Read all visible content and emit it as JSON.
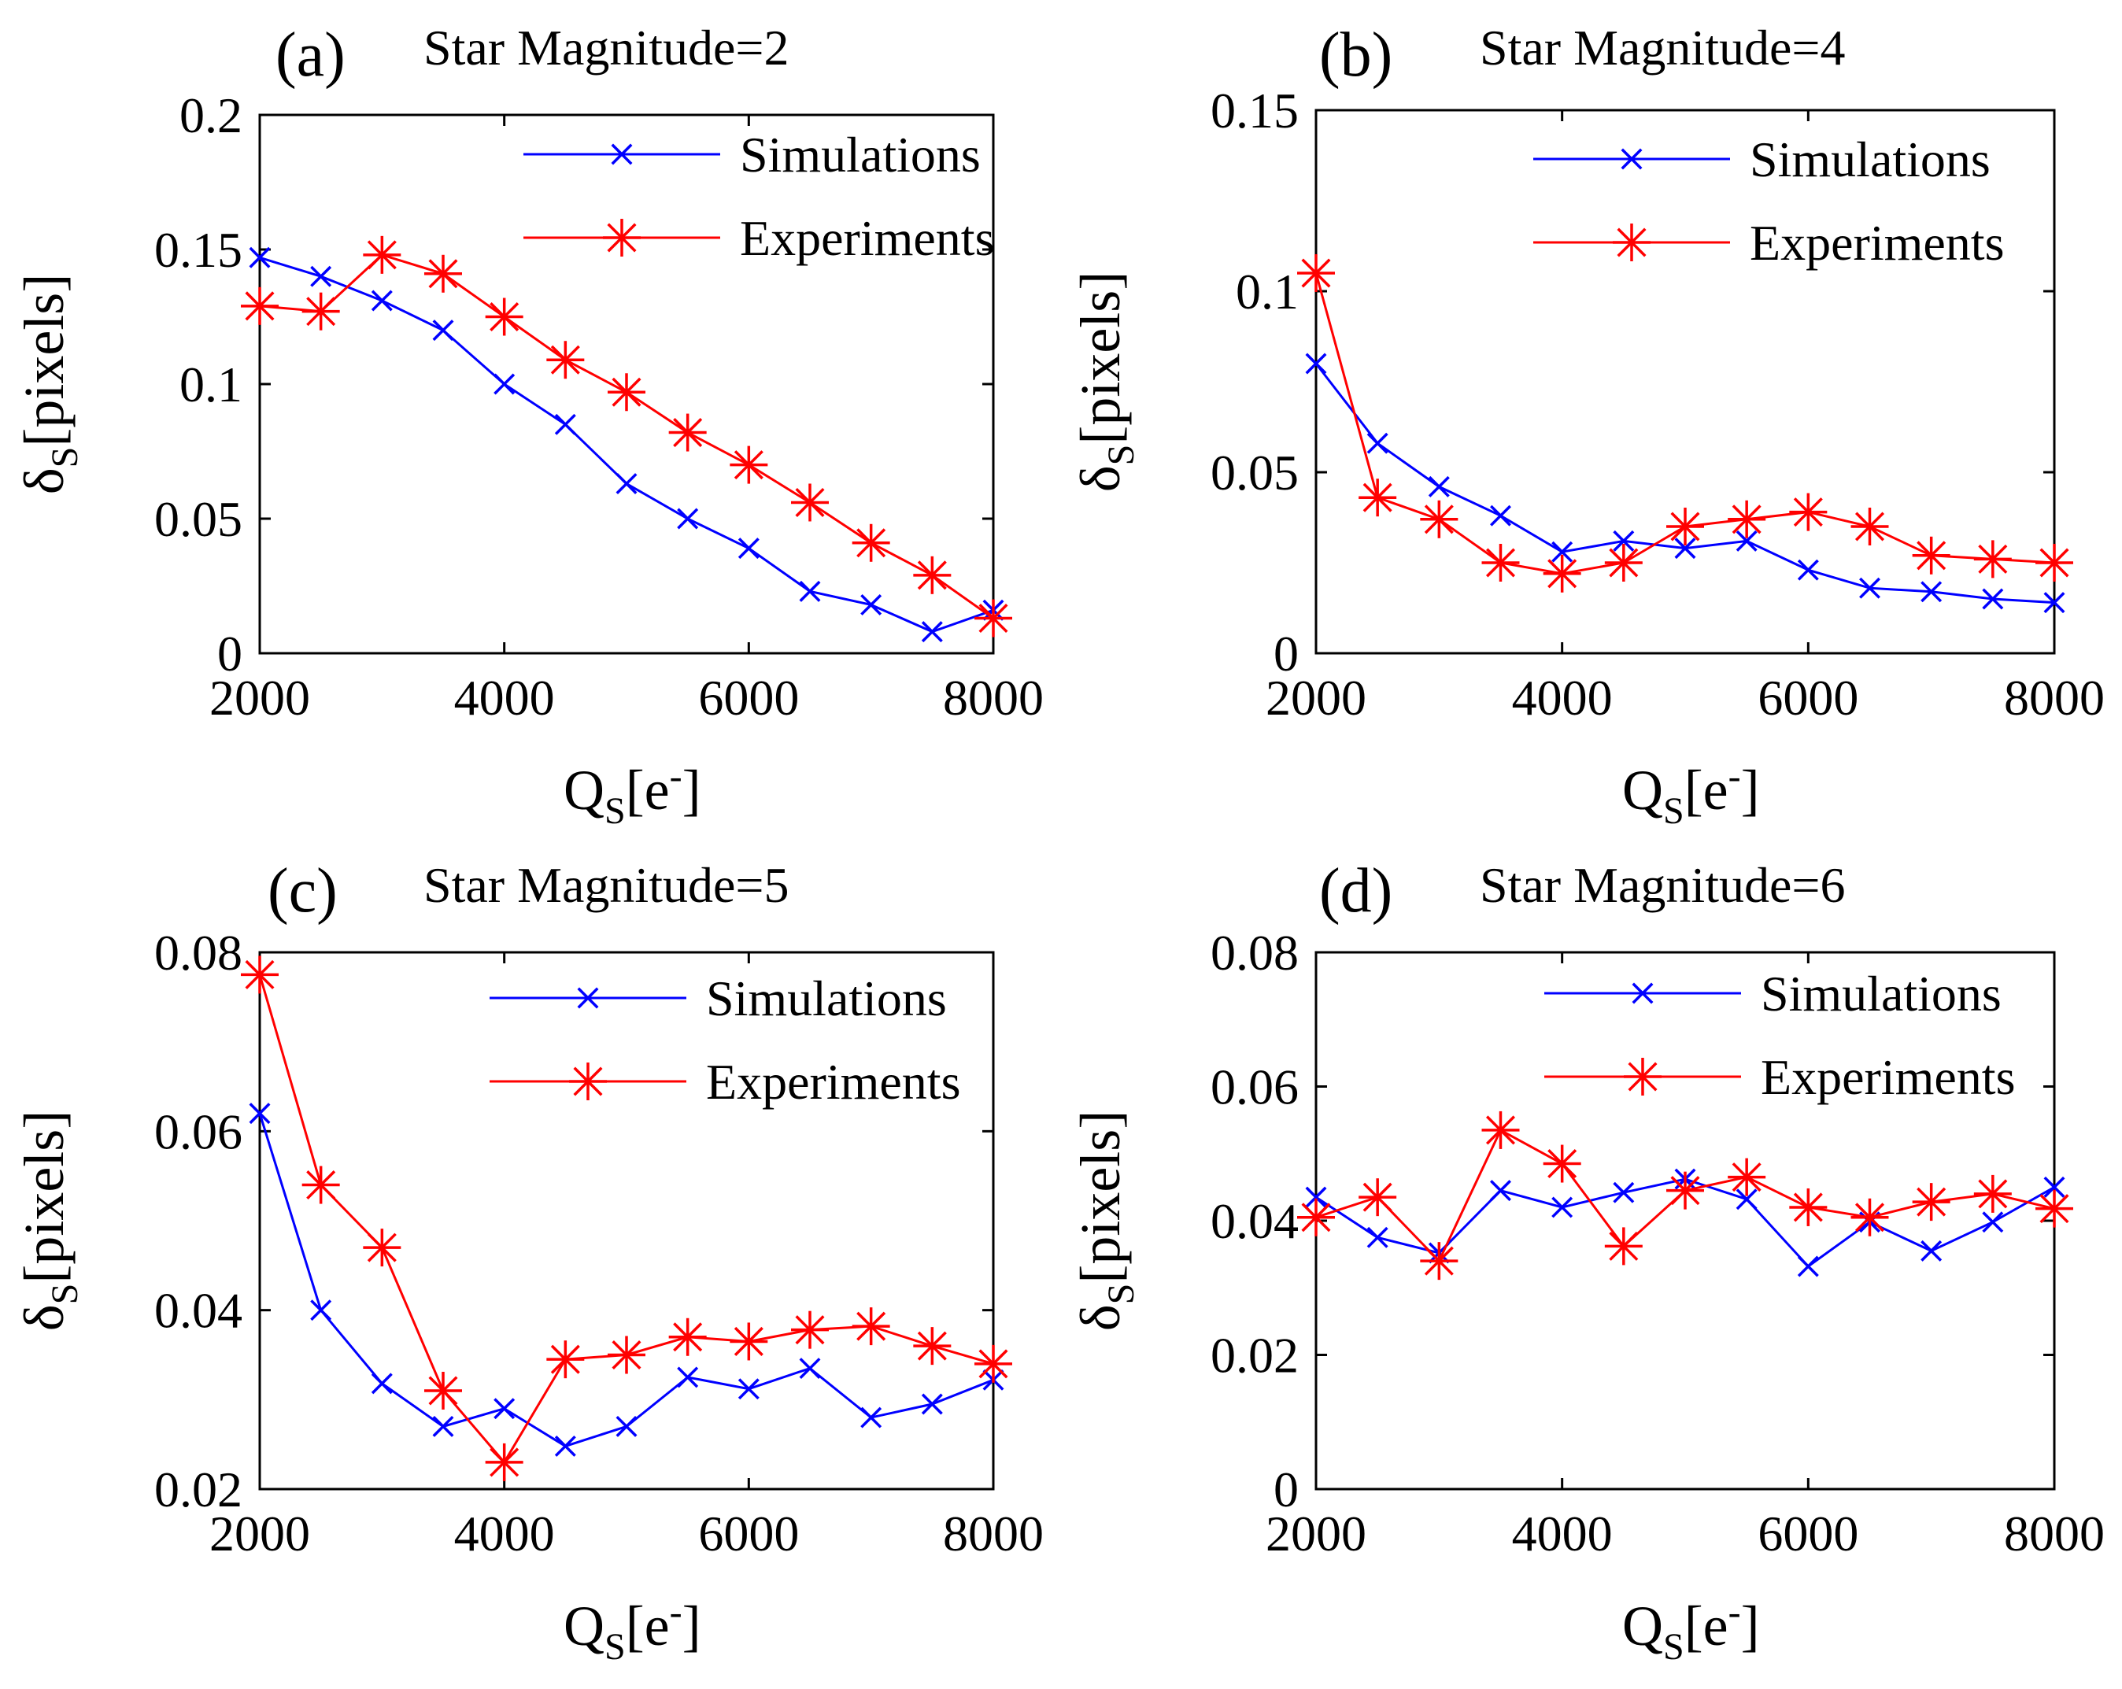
{
  "figure": {
    "xlabel": "Q",
    "xlabel_sub": "S",
    "xlabel_tail": "[e",
    "xlabel_sup": "-",
    "xlabel_close": "]",
    "ylabel": "δ",
    "ylabel_sub": "S",
    "ylabel_tail": "[pixels]"
  },
  "colors": {
    "sim": "#0000ff",
    "exp": "#ff0000"
  },
  "chart_data": [
    {
      "type": "line",
      "panel": "(a)",
      "title": "Star Magnitude=2",
      "x": [
        2000,
        2500,
        3000,
        3500,
        4000,
        4500,
        5000,
        5500,
        6000,
        6500,
        7000,
        7500,
        8000
      ],
      "xlim": [
        2000,
        8000
      ],
      "xticks": [
        "2000",
        "4000",
        "6000",
        "8000"
      ],
      "ylim": [
        0,
        0.2
      ],
      "yticks": [
        "0",
        "0.05",
        "0.1",
        "0.15",
        "0.2"
      ],
      "legend_position": "top-right",
      "series": [
        {
          "name": "Simulations",
          "marker": "x",
          "values": [
            0.147,
            0.14,
            0.131,
            0.12,
            0.1,
            0.085,
            0.063,
            0.05,
            0.039,
            0.023,
            0.018,
            0.008,
            0.016
          ]
        },
        {
          "name": "Experiments",
          "marker": "star",
          "values": [
            0.129,
            0.127,
            0.148,
            0.141,
            0.125,
            0.109,
            0.097,
            0.082,
            0.07,
            0.056,
            0.041,
            0.029,
            0.013
          ]
        }
      ]
    },
    {
      "type": "line",
      "panel": "(b)",
      "title": "Star Magnitude=4",
      "x": [
        2000,
        2500,
        3000,
        3500,
        4000,
        4500,
        5000,
        5500,
        6000,
        6500,
        7000,
        7500,
        8000
      ],
      "xlim": [
        2000,
        8000
      ],
      "xticks": [
        "2000",
        "4000",
        "6000",
        "8000"
      ],
      "ylim": [
        0,
        0.15
      ],
      "yticks": [
        "0",
        "0.05",
        "0.1",
        "0.15"
      ],
      "legend_position": "top-right",
      "series": [
        {
          "name": "Simulations",
          "marker": "x",
          "values": [
            0.08,
            0.058,
            0.046,
            0.038,
            0.028,
            0.031,
            0.029,
            0.031,
            0.023,
            0.018,
            0.017,
            0.015,
            0.014
          ]
        },
        {
          "name": "Experiments",
          "marker": "star",
          "values": [
            0.105,
            0.043,
            0.037,
            0.025,
            0.022,
            0.025,
            0.035,
            0.037,
            0.039,
            0.035,
            0.027,
            0.026,
            0.025
          ]
        }
      ]
    },
    {
      "type": "line",
      "panel": "(c)",
      "title": "Star Magnitude=5",
      "x": [
        2000,
        2500,
        3000,
        3500,
        4000,
        4500,
        5000,
        5500,
        6000,
        6500,
        7000,
        7500,
        8000
      ],
      "xlim": [
        2000,
        8000
      ],
      "xticks": [
        "2000",
        "4000",
        "6000",
        "8000"
      ],
      "ylim": [
        0.02,
        0.08
      ],
      "yticks": [
        "0.02",
        "0.04",
        "0.06",
        "0.08"
      ],
      "legend_position": "top-right",
      "series": [
        {
          "name": "Simulations",
          "marker": "x",
          "values": [
            0.062,
            0.04,
            0.0318,
            0.027,
            0.029,
            0.0248,
            0.027,
            0.0325,
            0.0312,
            0.0335,
            0.028,
            0.0295,
            0.0322
          ]
        },
        {
          "name": "Experiments",
          "marker": "star",
          "values": [
            0.0775,
            0.054,
            0.047,
            0.031,
            0.023,
            0.0345,
            0.035,
            0.037,
            0.0365,
            0.0378,
            0.0382,
            0.036,
            0.034
          ]
        }
      ]
    },
    {
      "type": "line",
      "panel": "(d)",
      "title": "Star Magnitude=6",
      "x": [
        2000,
        2500,
        3000,
        3500,
        4000,
        4500,
        5000,
        5500,
        6000,
        6500,
        7000,
        7500,
        8000
      ],
      "xlim": [
        2000,
        8000
      ],
      "xticks": [
        "2000",
        "4000",
        "6000",
        "8000"
      ],
      "ylim": [
        0,
        0.08
      ],
      "yticks": [
        "0",
        "0.02",
        "0.04",
        "0.06",
        "0.08"
      ],
      "legend_position": "top-right",
      "series": [
        {
          "name": "Simulations",
          "marker": "x",
          "values": [
            0.0435,
            0.0375,
            0.0352,
            0.0445,
            0.042,
            0.0442,
            0.0462,
            0.0432,
            0.0332,
            0.0398,
            0.0355,
            0.0398,
            0.045
          ]
        },
        {
          "name": "Experiments",
          "marker": "star",
          "values": [
            0.0405,
            0.0435,
            0.034,
            0.0535,
            0.0485,
            0.0362,
            0.0445,
            0.0465,
            0.042,
            0.0405,
            0.0428,
            0.044,
            0.0418
          ]
        }
      ]
    }
  ]
}
